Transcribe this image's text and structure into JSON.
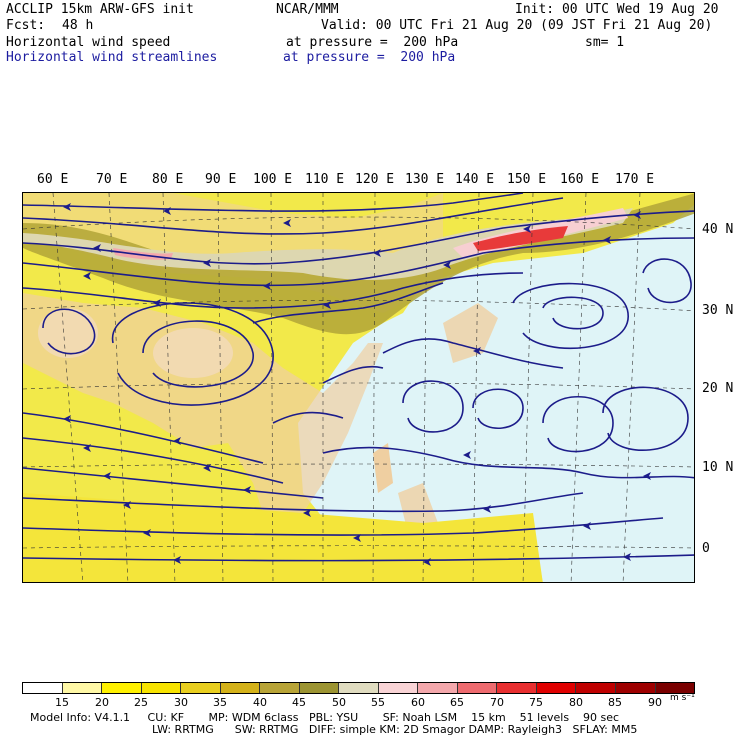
{
  "header": {
    "model": "ACCLIP 15km ARW-GFS init",
    "org": "NCAR/MMM",
    "init": "Init: 00 UTC Wed 19 Aug 20",
    "fcst_label": "Fcst:",
    "fcst_value": "48 h",
    "valid": "Valid: 00 UTC Fri 21 Aug 20 (09 JST Fri 21 Aug 20)",
    "field1_name": "Horizontal wind speed",
    "field1_level": "at pressure =  200 hPa",
    "smooth": "sm= 1",
    "field2_name": "Horizontal wind streamlines",
    "field2_level": "at pressure =  200 hPa"
  },
  "map": {
    "lon_labels": [
      "60 E",
      "70 E",
      "80 E",
      "90 E",
      "100 E",
      "110 E",
      "120 E",
      "130 E",
      "140 E",
      "150 E",
      "160 E",
      "170 E"
    ],
    "lat_labels": [
      "40 N",
      "30 N",
      "20 N",
      "10 N",
      "0"
    ],
    "colors": {
      "calm": "#dff4f7",
      "yellow": "#f2e94a",
      "gold": "#d8c231",
      "olive": "#b1a537",
      "dark_olive": "#888432",
      "pink": "#f7cfd2",
      "red": "#e83a3a",
      "land": "#efcfa1",
      "streamline": "#1c1c8a"
    }
  },
  "colorbar": {
    "tick_labels": [
      "15",
      "20",
      "25",
      "30",
      "35",
      "40",
      "45",
      "50",
      "55",
      "60",
      "65",
      "70",
      "75",
      "80",
      "85",
      "90"
    ],
    "units": "m s⁻¹",
    "colors": [
      "#ffffff",
      "#fff8a6",
      "#fff100",
      "#f7e300",
      "#e9cf20",
      "#d4b21a",
      "#b8a437",
      "#9c9432",
      "#e0dcc0",
      "#f9d4d6",
      "#f4a8ac",
      "#ee6b6f",
      "#e82f30",
      "#e00000",
      "#bf0000",
      "#9e0000",
      "#7a0000"
    ]
  },
  "footer": {
    "line1": "Model Info: V4.1.1     CU: KF       MP: WDM 6class   PBL: YSU       SF: Noah LSM    15 km    51 levels    90 sec",
    "line2": "LW: RRTMG      SW: RRTMG   DIFF: simple KM: 2D Smagor DAMP: Rayleigh3   SFLAY: MM5"
  }
}
